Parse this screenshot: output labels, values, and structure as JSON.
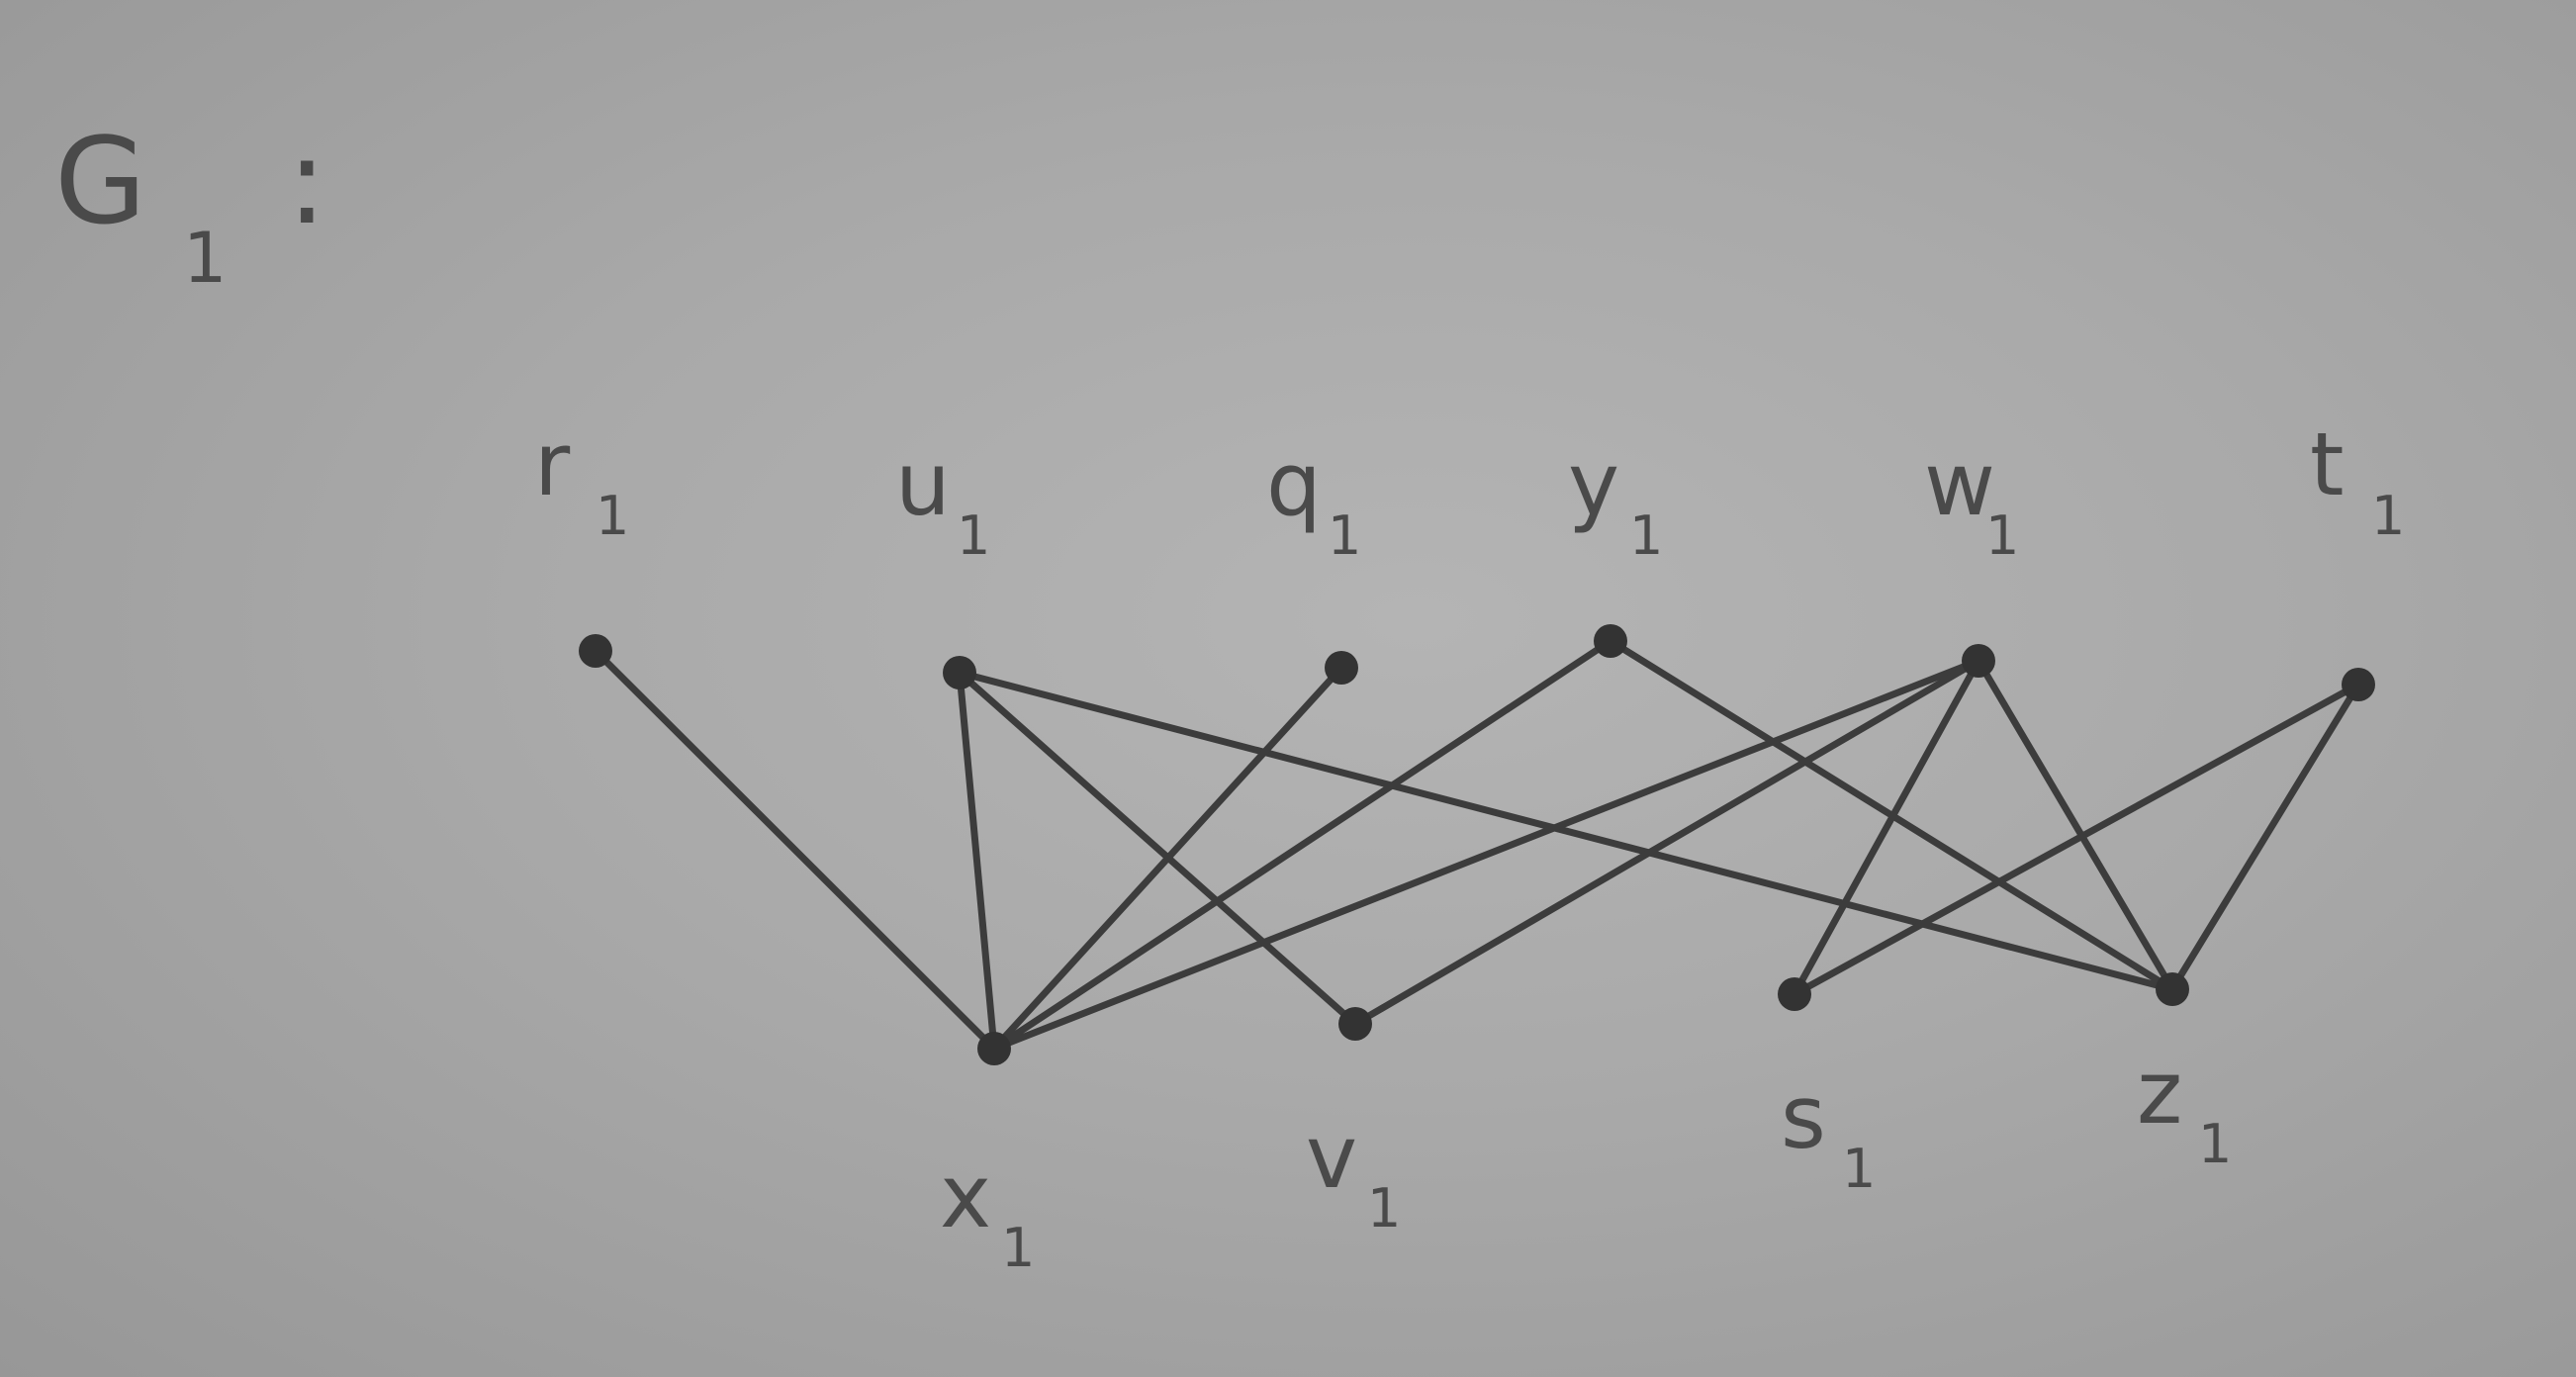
{
  "graph": {
    "name": "G",
    "name_subscript": "1",
    "name_suffix": ":",
    "vertices": [
      {
        "id": "r",
        "label": "r",
        "subscript": "1",
        "row": "top"
      },
      {
        "id": "u",
        "label": "u",
        "subscript": "1",
        "row": "top"
      },
      {
        "id": "q",
        "label": "q",
        "subscript": "1",
        "row": "top"
      },
      {
        "id": "y",
        "label": "y",
        "subscript": "1",
        "row": "top"
      },
      {
        "id": "w",
        "label": "w",
        "subscript": "1",
        "row": "top"
      },
      {
        "id": "t",
        "label": "t",
        "subscript": "1",
        "row": "top"
      },
      {
        "id": "x",
        "label": "x",
        "subscript": "1",
        "row": "bottom"
      },
      {
        "id": "v",
        "label": "v",
        "subscript": "1",
        "row": "bottom"
      },
      {
        "id": "s",
        "label": "s",
        "subscript": "1",
        "row": "bottom"
      },
      {
        "id": "z",
        "label": "z",
        "subscript": "1",
        "row": "bottom"
      }
    ],
    "edges": [
      [
        "r",
        "x"
      ],
      [
        "u",
        "x"
      ],
      [
        "u",
        "v"
      ],
      [
        "u",
        "z"
      ],
      [
        "q",
        "x"
      ],
      [
        "y",
        "x"
      ],
      [
        "y",
        "z"
      ],
      [
        "w",
        "x"
      ],
      [
        "w",
        "v"
      ],
      [
        "w",
        "s"
      ],
      [
        "w",
        "z"
      ],
      [
        "t",
        "s"
      ],
      [
        "t",
        "z"
      ]
    ]
  }
}
